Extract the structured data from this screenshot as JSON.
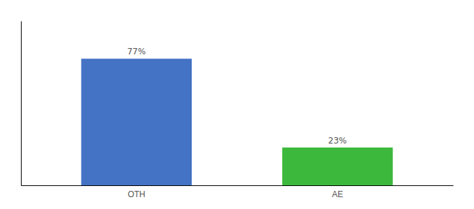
{
  "chart_data": {
    "type": "bar",
    "categories": [
      "OTH",
      "AE"
    ],
    "values": [
      77,
      23
    ],
    "value_labels": [
      "77%",
      "23%"
    ],
    "colors": [
      "#4472C4",
      "#3CB93C"
    ],
    "ylim": [
      0,
      100
    ],
    "data_labels": true,
    "tick_labels": "x",
    "grid": false
  }
}
